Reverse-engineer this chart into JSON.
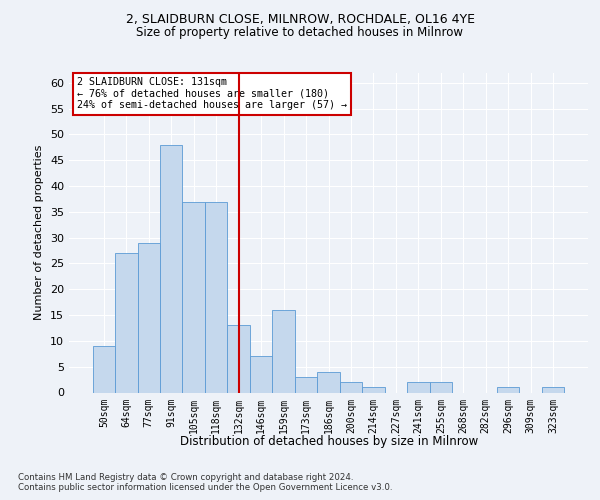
{
  "title_line1": "2, SLAIDBURN CLOSE, MILNROW, ROCHDALE, OL16 4YE",
  "title_line2": "Size of property relative to detached houses in Milnrow",
  "xlabel": "Distribution of detached houses by size in Milnrow",
  "ylabel": "Number of detached properties",
  "bar_labels": [
    "50sqm",
    "64sqm",
    "77sqm",
    "91sqm",
    "105sqm",
    "118sqm",
    "132sqm",
    "146sqm",
    "159sqm",
    "173sqm",
    "186sqm",
    "200sqm",
    "214sqm",
    "227sqm",
    "241sqm",
    "255sqm",
    "268sqm",
    "282sqm",
    "296sqm",
    "309sqm",
    "323sqm"
  ],
  "bar_values": [
    9,
    27,
    29,
    48,
    37,
    37,
    13,
    7,
    16,
    3,
    4,
    2,
    1,
    0,
    2,
    2,
    0,
    0,
    1,
    0,
    1
  ],
  "bar_color": "#c5d8ed",
  "bar_edge_color": "#5b9bd5",
  "vline_x": 6,
  "vline_color": "#cc0000",
  "annotation_title": "2 SLAIDBURN CLOSE: 131sqm",
  "annotation_line1": "← 76% of detached houses are smaller (180)",
  "annotation_line2": "24% of semi-detached houses are larger (57) →",
  "annotation_box_color": "#ffffff",
  "annotation_box_edge": "#cc0000",
  "ylim": [
    0,
    62
  ],
  "yticks": [
    0,
    5,
    10,
    15,
    20,
    25,
    30,
    35,
    40,
    45,
    50,
    55,
    60
  ],
  "footer_line1": "Contains HM Land Registry data © Crown copyright and database right 2024.",
  "footer_line2": "Contains public sector information licensed under the Open Government Licence v3.0.",
  "bg_color": "#eef2f8",
  "plot_bg_color": "#eef2f8"
}
